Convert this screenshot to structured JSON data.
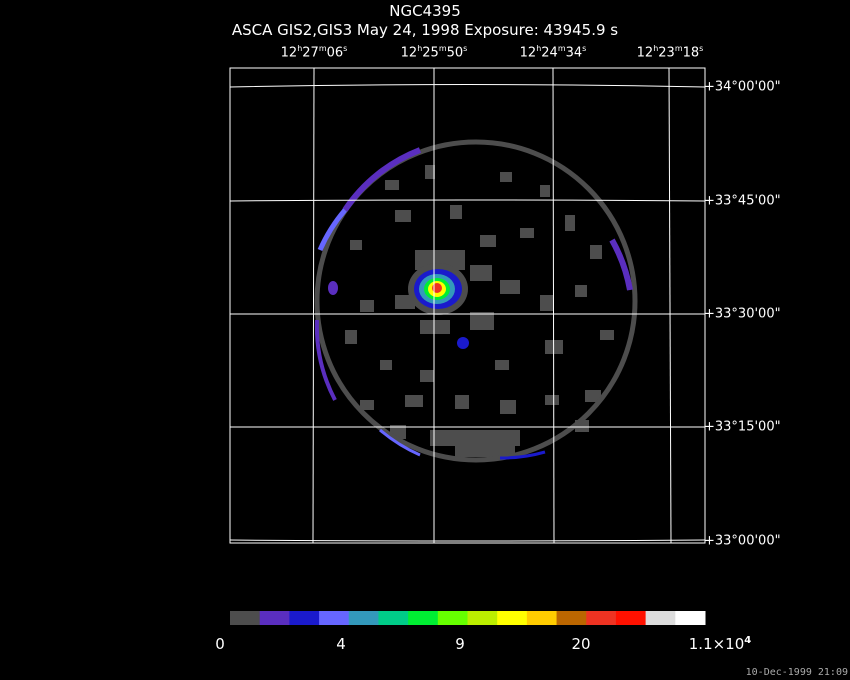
{
  "title": "NGC4395",
  "subtitle": "ASCA GIS2,GIS3 May 24, 1998 Exposure: 43945.9 s",
  "ra_labels": [
    {
      "h": "12",
      "m": "27",
      "s": "06"
    },
    {
      "h": "12",
      "m": "25",
      "s": "50"
    },
    {
      "h": "12",
      "m": "24",
      "s": "34"
    },
    {
      "h": "12",
      "m": "23",
      "s": "18"
    }
  ],
  "dec_labels": [
    "+34°00'00\"",
    "+33°45'00\"",
    "+33°30'00\"",
    "+33°15'00\"",
    "+33°00'00\""
  ],
  "colorbar": {
    "colors": [
      "#4d4d4d",
      "#5a2ebf",
      "#1a1acc",
      "#6666ff",
      "#3399bb",
      "#00cc88",
      "#00ee33",
      "#66ff00",
      "#bbee00",
      "#ffff00",
      "#ffcc00",
      "#bb6600",
      "#ee3322",
      "#ff1100",
      "#dddddd",
      "#ffffff"
    ],
    "labels": [
      {
        "text": "0"
      },
      {
        "text": "4"
      },
      {
        "text": "9"
      },
      {
        "text": "20"
      },
      {
        "text": "1.1×10",
        "sup": "4"
      }
    ]
  },
  "timestamp": "10-Dec-1999 21:09"
}
